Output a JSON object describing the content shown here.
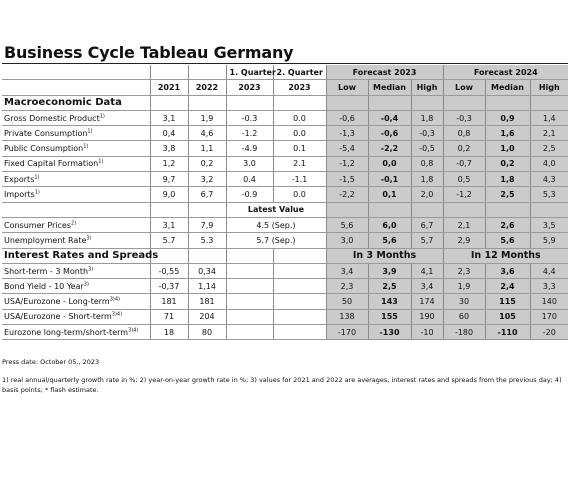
{
  "title": "Business Cycle Tableau Germany",
  "header": {
    "q1": "1. Quarter",
    "q2": "2. Quarter",
    "forecast_2023": "Forecast 2023",
    "forecast_2024": "Forecast 2024",
    "col_2021": "2021",
    "col_2022": "2022",
    "col_q1_2023": "2023",
    "col_q2_2023": "2023",
    "low": "Low",
    "median": "Median",
    "high": "High"
  },
  "sections": {
    "macro": "Macroeconomic Data",
    "rates": "Interest Rates and Spreads"
  },
  "latest_value": "Latest Value",
  "in_3_months": "In 3 Months",
  "in_12_months": "In 12 Months",
  "macro_rows": [
    {
      "label": "Gross Domestic Product",
      "sup": "1)",
      "v2021": "3,1",
      "v2022": "1,9",
      "q1": "-0.3",
      "q2": "0.0",
      "f23": [
        "-0,6",
        "-0,4",
        "1,8"
      ],
      "f24": [
        "-0,3",
        "0,9",
        "1,4"
      ]
    },
    {
      "label": "Private Consumption",
      "sup": "1)",
      "v2021": "0,4",
      "v2022": "4,6",
      "q1": "-1.2",
      "q2": "0.0",
      "f23": [
        "-1,3",
        "-0,6",
        "-0,3"
      ],
      "f24": [
        "0,8",
        "1,6",
        "2,1"
      ]
    },
    {
      "label": "Public Consumption",
      "sup": "1)",
      "v2021": "3,8",
      "v2022": "1,1",
      "q1": "-4.9",
      "q2": "0.1",
      "f23": [
        "-5,4",
        "-2,2",
        "-0,5"
      ],
      "f24": [
        "0,2",
        "1,0",
        "2,5"
      ]
    },
    {
      "label": "Fixed Capital Formation",
      "sup": "1)",
      "v2021": "1,2",
      "v2022": "0,2",
      "q1": "3.0",
      "q2": "2.1",
      "f23": [
        "-1,2",
        "0,0",
        "0,8"
      ],
      "f24": [
        "-0,7",
        "0,2",
        "4,0"
      ]
    },
    {
      "label": "Exports",
      "sup": "1)",
      "v2021": "9,7",
      "v2022": "3,2",
      "q1": "0.4",
      "q2": "-1.1",
      "f23": [
        "-1,5",
        "-0,1",
        "1,8"
      ],
      "f24": [
        "0,5",
        "1,8",
        "4,3"
      ]
    },
    {
      "label": "Imports",
      "sup": "1)",
      "v2021": "9,0",
      "v2022": "6,7",
      "q1": "-0.9",
      "q2": "0.0",
      "f23": [
        "-2,2",
        "0,1",
        "2,0"
      ],
      "f24": [
        "-1,2",
        "2,5",
        "5,3"
      ]
    }
  ],
  "latest_rows": [
    {
      "label": "Consumer Prices",
      "sup": "2)",
      "v2021": "3,1",
      "v2022": "7,9",
      "latest": "4.5 (Sep.)",
      "f23": [
        "5,6",
        "6,0",
        "6,7"
      ],
      "f24": [
        "2,1",
        "2,6",
        "3,5"
      ]
    },
    {
      "label": "Unemployment Rate",
      "sup": "3)",
      "v2021": "5.7",
      "v2022": "5.3",
      "latest": "5.7 (Sep.)",
      "f23": [
        "3,0",
        "5,6",
        "5,7"
      ],
      "f24": [
        "2,9",
        "5,6",
        "5,9"
      ]
    }
  ],
  "rate_rows": [
    {
      "label": "Short-term - 3 Month",
      "sup": "3)",
      "v2021": "-0,55",
      "v2022": "0,34",
      "f23": [
        "3,4",
        "3,9",
        "4,1"
      ],
      "f24": [
        "2,3",
        "3,6",
        "4,4"
      ]
    },
    {
      "label": "Bond Yield - 10 Year",
      "sup": "3)",
      "v2021": "-0,37",
      "v2022": "1,14",
      "f23": [
        "2,3",
        "2,5",
        "3,4"
      ],
      "f24": [
        "1,9",
        "2,4",
        "3,3"
      ]
    },
    {
      "label": "USA/Eurozone - Long-term",
      "sup": "3)4)",
      "v2021": "181",
      "v2022": "181",
      "f23": [
        "50",
        "143",
        "174"
      ],
      "f24": [
        "30",
        "115",
        "140"
      ]
    },
    {
      "label": "USA/Eurozone - Short-term",
      "sup": "3)4)",
      "v2021": "71",
      "v2022": "204",
      "f23": [
        "138",
        "155",
        "190"
      ],
      "f24": [
        "60",
        "105",
        "170"
      ]
    },
    {
      "label": "Eurozone long-term/short-term",
      "sup": "3)4)",
      "v2021": "18",
      "v2022": "80",
      "f23": [
        "-170",
        "-130",
        "-10"
      ],
      "f24": [
        "-180",
        "-110",
        "-20"
      ]
    }
  ],
  "press_date": "Press date: October 05., 2023",
  "footnote": "1) real annual/quarterly growth rate in %; 2) year-on-year growth rate in %; 3) values for 2021 and 2022 are averages, interest rates and spreads from the previous day; 4) basis points; * flash estimate."
}
